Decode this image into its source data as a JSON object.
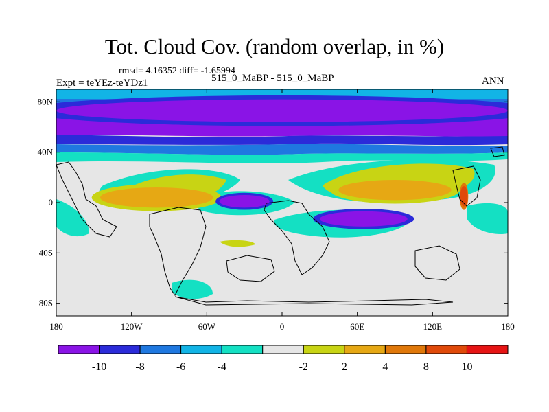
{
  "chart_data": {
    "type": "heatmap",
    "title": "Tot. Cloud Cov. (random overlap, in %)",
    "stats": "rmsd= 4.16352 diff= -1.65994",
    "experiment": "Expt = teYEz-teYDz1",
    "cases": "515_0_MaBP - 515_0_MaBP",
    "season": "ANN",
    "x_ticks": [
      "180",
      "120W",
      "60W",
      "0",
      "60E",
      "120E",
      "180"
    ],
    "x_tick_values": [
      -180,
      -120,
      -60,
      0,
      60,
      120,
      180
    ],
    "y_ticks": [
      "80N",
      "40N",
      "0",
      "40S",
      "80S"
    ],
    "y_tick_values": [
      80,
      40,
      0,
      -40,
      -80
    ],
    "xlim": [
      -180,
      180
    ],
    "ylim": [
      -90,
      90
    ],
    "colorbar": {
      "colors": [
        "#8a14e6",
        "#2b2bd9",
        "#1f78e0",
        "#12b4e6",
        "#14e0c3",
        "#e6e6e6",
        "#c8d414",
        "#e6a814",
        "#e0780a",
        "#e04a0a",
        "#e61414"
      ],
      "labels": [
        "-10",
        "-8",
        "-6",
        "-4",
        "-2",
        "2",
        "4",
        "8",
        "10"
      ]
    },
    "features": [
      {
        "lon": 0,
        "lat": 73,
        "rx": 180,
        "ry": 9,
        "level": 0
      },
      {
        "lon": -100,
        "lat": 4,
        "rx": 45,
        "ry": 8,
        "level": 7
      },
      {
        "lon": -30,
        "lat": 1,
        "rx": 20,
        "ry": 5,
        "level": 0
      },
      {
        "lon": 65,
        "lat": -13,
        "rx": 35,
        "ry": 6,
        "level": 0
      },
      {
        "lon": 90,
        "lat": 10,
        "rx": 45,
        "ry": 8,
        "level": 7
      },
      {
        "lon": 145,
        "lat": 5,
        "rx": 3,
        "ry": 8,
        "level": 9
      }
    ]
  }
}
